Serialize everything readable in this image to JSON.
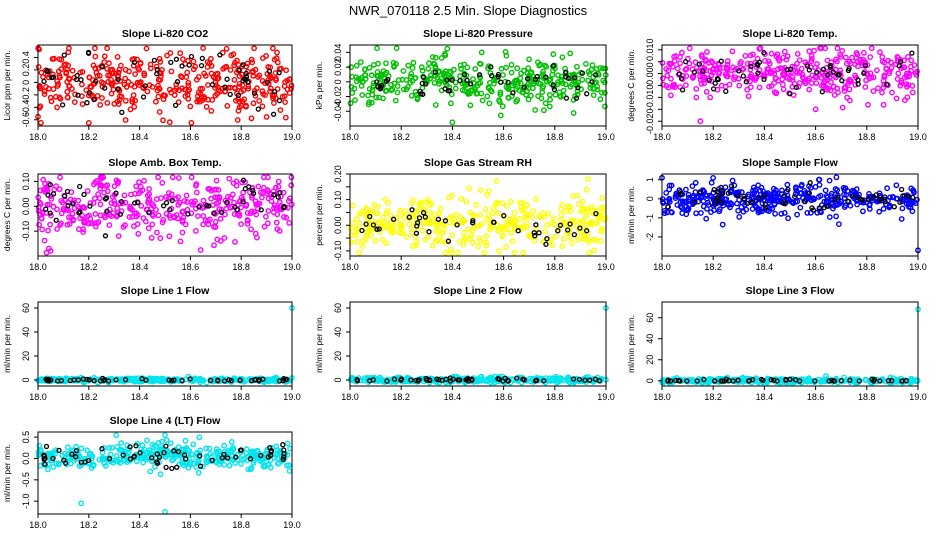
{
  "title": "NWR_070118  2.5 Min. Slope Diagnostics",
  "colors": {
    "red": "#ff0000",
    "green": "#00c000",
    "magenta": "#ff00ff",
    "yellow": "#ffff00",
    "blue": "#0000ff",
    "cyan": "#00e5ee",
    "overlay": "#000000"
  },
  "chart_data": [
    {
      "type": "scatter",
      "title": "Slope Li-820 CO2",
      "ylabel": "Licor ppm per min.",
      "xlim": [
        18.0,
        19.0
      ],
      "ylim": [
        -0.7,
        0.6
      ],
      "xticks": [
        "18.0",
        "18.2",
        "18.4",
        "18.6",
        "18.8",
        "19.0"
      ],
      "yticks": [
        -0.6,
        -0.4,
        -0.2,
        0.0,
        0.2,
        0.4
      ],
      "color": "red",
      "spread": 0.25,
      "mean": 0.0,
      "n_points": 380,
      "n_overlay": 60,
      "outliers": [
        {
          "x": 18.2,
          "y": -0.65
        },
        {
          "x": 18.0,
          "y": -0.55
        },
        {
          "x": 18.65,
          "y": 0.55
        }
      ]
    },
    {
      "type": "scatter",
      "title": "Slope Li-820 Pressure",
      "ylabel": "kPa per min.",
      "xlim": [
        18.0,
        19.0
      ],
      "ylim": [
        -0.06,
        0.05
      ],
      "xticks": [
        "18.0",
        "18.2",
        "18.4",
        "18.6",
        "18.8",
        "19.0"
      ],
      "yticks": [
        -0.04,
        -0.02,
        0.0,
        0.02,
        0.04
      ],
      "color": "green",
      "spread": 0.016,
      "mean": 0.0,
      "n_points": 380,
      "n_overlay": 50,
      "outliers": [
        {
          "x": 18.4,
          "y": -0.055
        },
        {
          "x": 18.38,
          "y": 0.045
        }
      ]
    },
    {
      "type": "scatter",
      "title": "Slope Li-820 Temp.",
      "ylabel": "degrees C per min.",
      "xlim": [
        18.0,
        19.0
      ],
      "ylim": [
        -0.022,
        0.012
      ],
      "xticks": [
        "18.0",
        "18.2",
        "18.4",
        "18.6",
        "18.8",
        "19.0"
      ],
      "yticks": [
        -0.02,
        -0.015,
        -0.01,
        -0.005,
        0.0,
        0.005,
        0.01
      ],
      "ytick_labels": [
        "-0.020",
        "",
        "-0.010",
        "",
        "0.000",
        "",
        "0.010"
      ],
      "color": "magenta",
      "spread": 0.005,
      "mean": 0.0,
      "n_points": 380,
      "n_overlay": 50,
      "outliers": [
        {
          "x": 18.15,
          "y": -0.02
        },
        {
          "x": 18.6,
          "y": -0.015
        }
      ]
    },
    {
      "type": "scatter",
      "title": "Slope Amb. Box Temp.",
      "ylabel": "degrees C per min.",
      "xlim": [
        18.0,
        19.0
      ],
      "ylim": [
        -0.2,
        0.13
      ],
      "xticks": [
        "18.0",
        "18.2",
        "18.4",
        "18.6",
        "18.8",
        "19.0"
      ],
      "yticks": [
        -0.1,
        0.0,
        0.1
      ],
      "ytick_labels": [
        "-0.10",
        "0.00",
        "0.10"
      ],
      "color": "magenta",
      "spread": 0.06,
      "mean": 0.0,
      "n_points": 380,
      "n_overlay": 50,
      "outliers": [
        {
          "x": 18.05,
          "y": -0.18
        },
        {
          "x": 18.25,
          "y": 0.12
        }
      ]
    },
    {
      "type": "scatter",
      "title": "Slope Gas Stream RH",
      "ylabel": "percent per min.",
      "xlim": [
        18.0,
        19.0
      ],
      "ylim": [
        -0.12,
        0.2
      ],
      "xticks": [
        "18.0",
        "18.2",
        "18.4",
        "18.6",
        "18.8",
        "19.0"
      ],
      "yticks": [
        -0.1,
        -0.05,
        0.0,
        0.05,
        0.1,
        0.15,
        0.2
      ],
      "ytick_labels": [
        "-0.10",
        "",
        "0.00",
        "",
        "0.10",
        "",
        "0.20"
      ],
      "color": "yellow",
      "spread": 0.055,
      "mean": 0.0,
      "n_points": 380,
      "n_overlay": 40,
      "outliers": [
        {
          "x": 18.93,
          "y": 0.18
        }
      ]
    },
    {
      "type": "scatter",
      "title": "Slope Sample Flow",
      "ylabel": "ml/min per min.",
      "xlim": [
        18.0,
        19.0
      ],
      "ylim": [
        -3.0,
        1.3
      ],
      "xticks": [
        "18.0",
        "18.2",
        "18.4",
        "18.6",
        "18.8",
        "19.0"
      ],
      "yticks": [
        -2,
        -1,
        0,
        1
      ],
      "color": "blue",
      "spread": 0.4,
      "mean": 0.0,
      "n_points": 400,
      "n_overlay": 60,
      "outliers": [
        {
          "x": 19.0,
          "y": -2.7
        },
        {
          "x": 18.0,
          "y": 1.1
        }
      ]
    },
    {
      "type": "scatter",
      "title": "Slope Line 1 Flow",
      "ylabel": "ml/min per min.",
      "xlim": [
        18.0,
        19.0
      ],
      "ylim": [
        -5,
        65
      ],
      "xticks": [
        "18.0",
        "18.2",
        "18.4",
        "18.6",
        "18.8",
        "19.0"
      ],
      "yticks": [
        0,
        20,
        40,
        60
      ],
      "color": "cyan",
      "spread": 0.8,
      "mean": 0.0,
      "n_points": 300,
      "n_overlay": 50,
      "outliers": [
        {
          "x": 19.0,
          "y": 60
        }
      ]
    },
    {
      "type": "scatter",
      "title": "Slope Line 2 Flow",
      "ylabel": "ml/min per min.",
      "xlim": [
        18.0,
        19.0
      ],
      "ylim": [
        -5,
        65
      ],
      "xticks": [
        "18.0",
        "18.2",
        "18.4",
        "18.6",
        "18.8",
        "19.0"
      ],
      "yticks": [
        0,
        20,
        40,
        60
      ],
      "color": "cyan",
      "spread": 1.2,
      "mean": 0.0,
      "n_points": 300,
      "n_overlay": 50,
      "outliers": [
        {
          "x": 19.0,
          "y": 60
        }
      ]
    },
    {
      "type": "scatter",
      "title": "Slope Line 3 Flow",
      "ylabel": "ml/min per min.",
      "xlim": [
        18.0,
        19.0
      ],
      "ylim": [
        -5,
        75
      ],
      "xticks": [
        "18.0",
        "18.2",
        "18.4",
        "18.6",
        "18.8",
        "19.0"
      ],
      "yticks": [
        0,
        20,
        40,
        60
      ],
      "color": "cyan",
      "spread": 1.2,
      "mean": 0.0,
      "n_points": 300,
      "n_overlay": 50,
      "outliers": [
        {
          "x": 19.0,
          "y": 68
        }
      ]
    },
    {
      "type": "scatter",
      "title": "Slope Line 4 (LT) Flow",
      "ylabel": "ml/min per min.",
      "xlim": [
        18.0,
        19.0
      ],
      "ylim": [
        -1.3,
        0.62
      ],
      "xticks": [
        "18.0",
        "18.2",
        "18.4",
        "18.6",
        "18.8",
        "19.0"
      ],
      "yticks": [
        -1.0,
        -0.5,
        0.0,
        0.5
      ],
      "ytick_labels": [
        "-1.0",
        "-0.5",
        "0.0",
        "0.5"
      ],
      "color": "cyan",
      "spread": 0.15,
      "mean": 0.05,
      "n_points": 380,
      "n_overlay": 60,
      "outliers": [
        {
          "x": 18.17,
          "y": -1.05
        },
        {
          "x": 18.5,
          "y": -1.25
        },
        {
          "x": 18.5,
          "y": 0.55
        }
      ]
    }
  ]
}
